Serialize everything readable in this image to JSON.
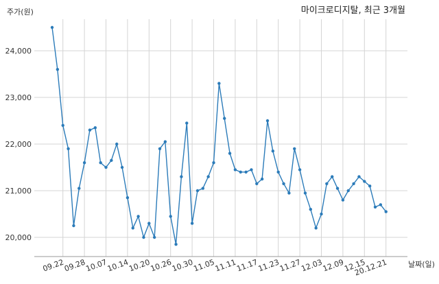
{
  "chart_data": {
    "type": "line",
    "title": "마이크로디지탈, 최근 3개월",
    "xlabel": "날짜(일)",
    "ylabel": "주가(원)",
    "ylim": [
      19600,
      24800
    ],
    "yticks": [
      20000,
      21000,
      22000,
      23000,
      24000
    ],
    "ytick_labels": [
      "20,000",
      "21,000",
      "22,000",
      "23,000",
      "24,000"
    ],
    "xtick_labels": [
      "09.22",
      "09.28",
      "10.07",
      "10.14",
      "10.20",
      "10.26",
      "10.30",
      "11.05",
      "11.11",
      "11.17",
      "11.23",
      "11.27",
      "12.03",
      "12.09",
      "12.15",
      "20.12.21"
    ],
    "xtick_index": [
      2,
      6,
      10,
      14,
      18,
      22,
      26,
      30,
      34,
      38,
      42,
      46,
      50,
      54,
      58,
      62
    ],
    "grid": true,
    "line_color": "#2b7bb9",
    "series": [
      {
        "values": [
          24500,
          23600,
          22400,
          21900,
          20250,
          21050,
          21600,
          22300,
          22350,
          21600,
          21500,
          21650,
          22000,
          21500,
          20850,
          20200,
          20450,
          20000,
          20300,
          20000,
          21900,
          22050,
          20450,
          19850,
          21300,
          22450,
          20300,
          21000,
          21050,
          21300,
          21600,
          23300,
          22550,
          21800,
          21450,
          21400,
          21400,
          21450,
          21150,
          21250,
          22500,
          21850,
          21400,
          21150,
          20950,
          21900,
          21450,
          20950,
          20600,
          20200,
          20500,
          21150,
          21300,
          21050,
          20800,
          21000,
          21150,
          21300,
          21200,
          21100,
          20650,
          20700,
          20550
        ]
      }
    ]
  }
}
